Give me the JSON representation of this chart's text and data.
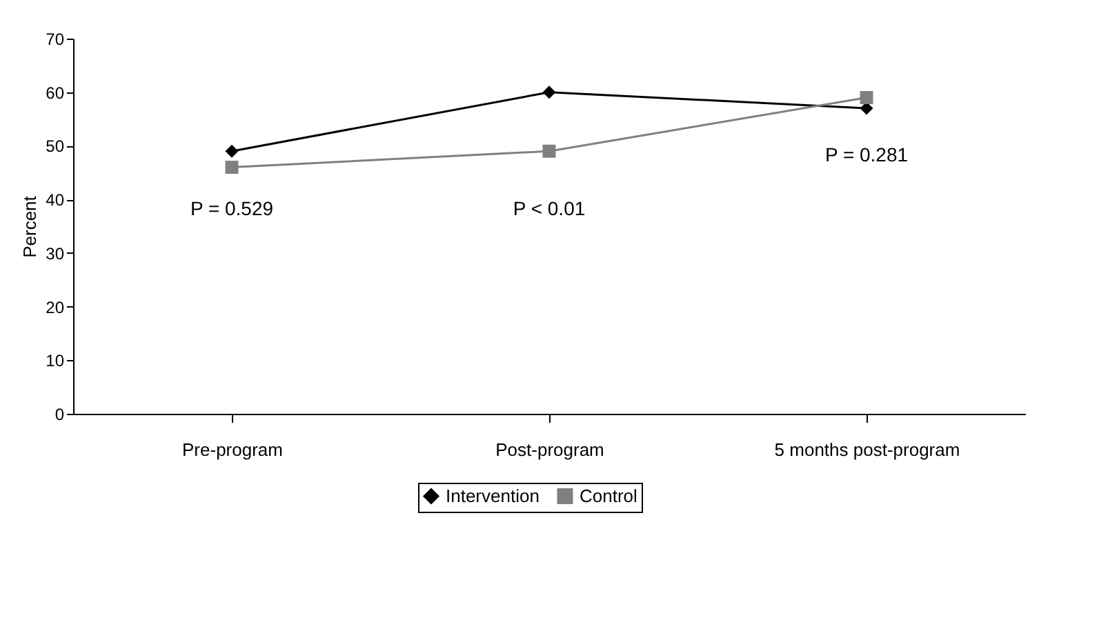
{
  "chart_data": {
    "type": "line",
    "ylabel": "Percent",
    "categories": [
      "Pre-program",
      "Post-program",
      "5 months post-program"
    ],
    "series": [
      {
        "name": "Intervention",
        "color": "#000000",
        "marker": "diamond",
        "values": [
          49,
          60,
          57
        ]
      },
      {
        "name": "Control",
        "color": "#808080",
        "marker": "square",
        "values": [
          46,
          49,
          59
        ]
      }
    ],
    "ylim": [
      0,
      70
    ],
    "yticks": [
      0,
      10,
      20,
      30,
      40,
      50,
      60,
      70
    ],
    "grid": false,
    "legend": "bottom",
    "annotations": [
      "P = 0.529",
      "P < 0.01",
      "P = 0.281"
    ]
  }
}
